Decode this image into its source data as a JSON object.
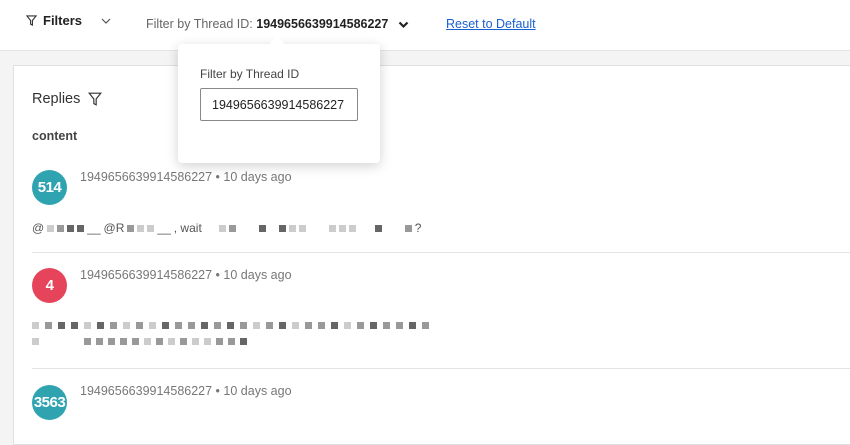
{
  "toolbar": {
    "filters_label": "Filters",
    "thread_filter_label": "Filter by Thread ID:",
    "thread_filter_value": "1949656639914586227",
    "reset_label": "Reset to Default"
  },
  "popover": {
    "label": "Filter by Thread ID",
    "input_value": "1949656639914586227"
  },
  "section": {
    "title": "Replies",
    "column": "content"
  },
  "replies": [
    {
      "avatar": "514",
      "avatar_color": "#2fa3b0",
      "meta": "1949656639914586227 • 10 days ago",
      "text_fragments": [
        "@",
        "@R",
        ", wait",
        "?"
      ]
    },
    {
      "avatar": "4",
      "avatar_color": "#e6445a",
      "meta": "1949656639914586227 • 10 days ago"
    },
    {
      "avatar": "3563",
      "avatar_color": "#2fa3b0",
      "meta": "1949656639914586227 • 10 days ago"
    }
  ]
}
